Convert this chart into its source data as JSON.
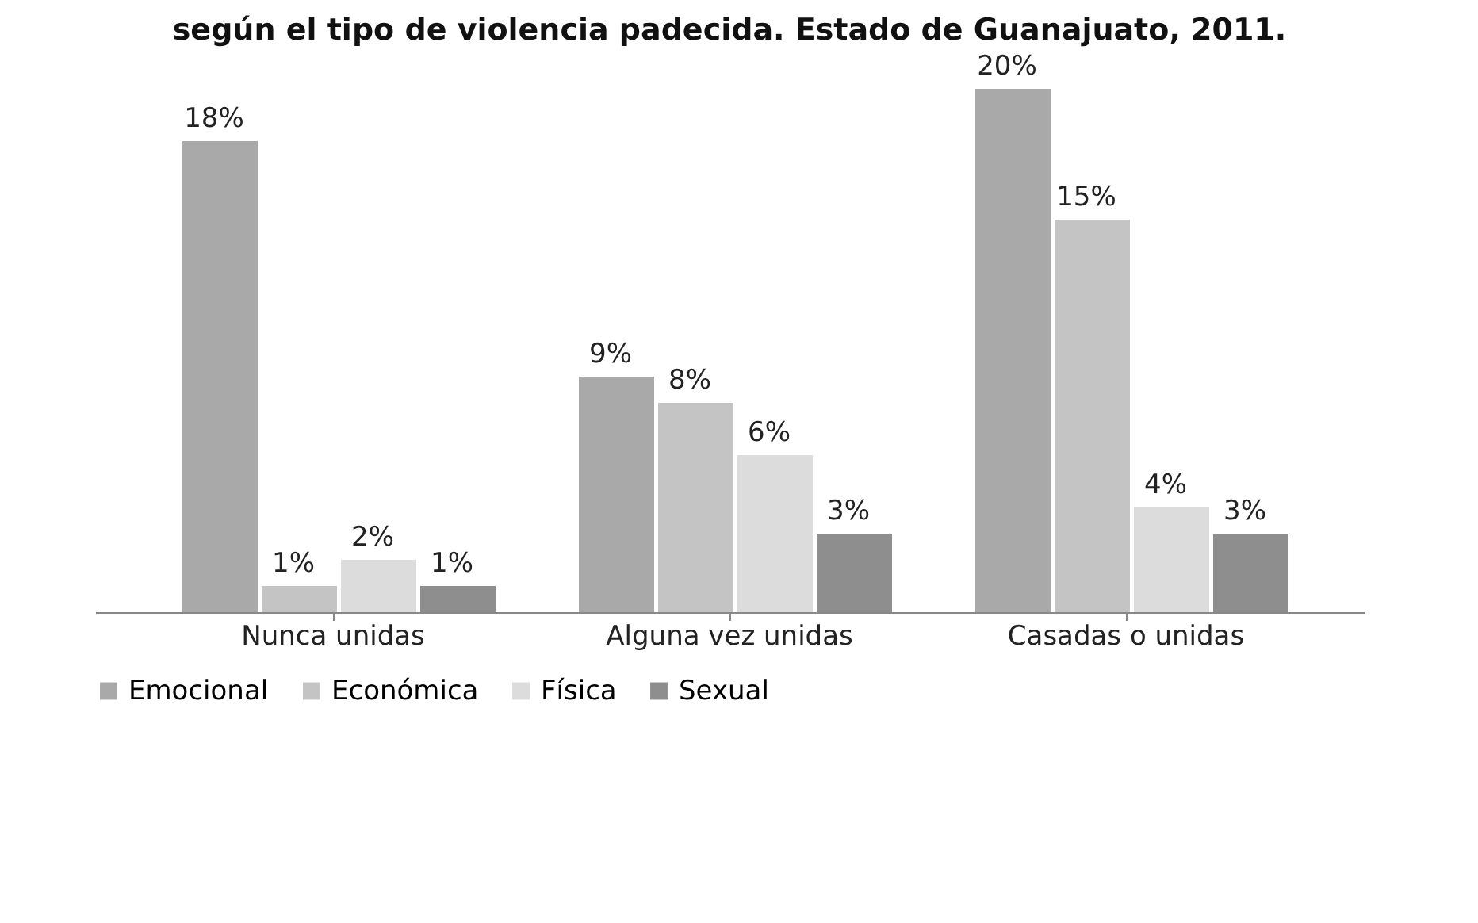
{
  "chart_data": {
    "type": "bar",
    "title": "según el tipo de violencia padecida. Estado de Guanajuato, 2011.",
    "categories": [
      "Nunca unidas",
      "Alguna vez unidas",
      "Casadas o unidas"
    ],
    "series": [
      {
        "name": "Emocional",
        "color": "#a9a9a9",
        "values": [
          18,
          9,
          20
        ],
        "value_labels": [
          "18%",
          "9%",
          "20%"
        ]
      },
      {
        "name": "Económica",
        "color": "#c4c4c4",
        "values": [
          1,
          8,
          15
        ],
        "value_labels": [
          "1%",
          "8%",
          "15%"
        ]
      },
      {
        "name": "Física",
        "color": "#dcdcdc",
        "values": [
          2,
          6,
          4
        ],
        "value_labels": [
          "2%",
          "6%",
          "4%"
        ]
      },
      {
        "name": "Sexual",
        "color": "#8e8e8e",
        "values": [
          1,
          3,
          3
        ],
        "value_labels": [
          "1%",
          "3%",
          "3%"
        ]
      }
    ],
    "legend": "bottom",
    "grid": false
  }
}
